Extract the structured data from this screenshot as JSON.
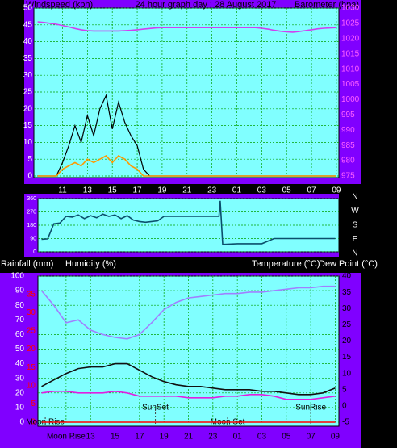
{
  "chart_data": [
    {
      "type": "line",
      "title": "24 hour graph day : 28 August 2017",
      "y_label": "Windspeed (kph)",
      "y2_label": "Barometer (hpa)",
      "x": [
        9,
        9.5,
        10,
        10.5,
        11,
        11.5,
        12,
        12.5,
        13,
        13.5,
        14,
        14.5,
        15,
        15.5,
        16,
        16.5,
        17,
        17.5,
        18,
        18.5,
        19,
        19.5,
        20,
        20.5,
        21,
        21.5,
        22,
        22.5,
        23,
        23.5,
        24,
        24.5,
        25,
        25.5,
        26,
        26.5,
        27,
        27.5,
        28,
        28.5,
        29,
        29.5,
        30,
        30.5,
        31,
        31.5,
        32,
        32.5,
        33
      ],
      "xlim": [
        8.7,
        33.2
      ],
      "xticks": [
        11,
        13,
        15,
        17,
        19,
        21,
        23,
        {
          "value": 25,
          "label": "01"
        },
        {
          "value": 27,
          "label": "03"
        },
        {
          "value": 29,
          "label": "05"
        },
        {
          "value": 31,
          "label": "07"
        },
        {
          "value": 33,
          "label": "09"
        }
      ],
      "ylim": [
        0,
        50
      ],
      "yticks": [
        0,
        5,
        10,
        15,
        20,
        25,
        30,
        35,
        40,
        45,
        50
      ],
      "y2lim": [
        975,
        1030
      ],
      "y2ticks": [
        975,
        980,
        985,
        990,
        995,
        1000,
        1005,
        1010,
        1015,
        1020,
        1025,
        1030
      ],
      "grid": true,
      "series": [
        {
          "color": "#000000",
          "values": [
            0,
            0,
            0,
            0,
            4,
            9,
            15,
            10,
            18,
            12,
            20,
            24,
            14,
            22,
            16,
            12,
            9,
            2,
            0,
            0,
            0,
            0,
            0,
            0,
            0,
            0,
            0,
            0,
            0,
            0,
            0,
            0,
            0,
            0,
            0,
            0,
            0,
            0,
            0,
            0,
            0,
            0,
            0,
            0,
            0,
            0,
            0,
            0,
            0
          ]
        },
        {
          "color": "#ff9900",
          "values": [
            0,
            0,
            0,
            0,
            2,
            3,
            4,
            3,
            5,
            4,
            5,
            6,
            4,
            6,
            5,
            3,
            2,
            0,
            0,
            0,
            0,
            0,
            0,
            0,
            0,
            0,
            0,
            0,
            0,
            0,
            0,
            0,
            0,
            0,
            0,
            0,
            0,
            0,
            0,
            0,
            0,
            0,
            0,
            0,
            0,
            0,
            0,
            0,
            0
          ]
        },
        {
          "color": "#d040f0",
          "axis": "y2",
          "values": [
            1025.5,
            1025.3,
            1025,
            1024.7,
            1024.3,
            1023.8,
            1023.3,
            1022.9,
            1022.6,
            1022.5,
            1022.5,
            1022.5,
            1022.5,
            1022.5,
            1022.6,
            1022.7,
            1022.9,
            1023.1,
            1023.3,
            1023.5,
            1023.6,
            1023.6,
            1023.6,
            1023.6,
            1023.6,
            1023.6,
            1023.6,
            1023.6,
            1023.6,
            1023.6,
            1023.6,
            1023.6,
            1023.6,
            1023.6,
            1023.6,
            1023.6,
            1023.4,
            1023.1,
            1022.7,
            1022.4,
            1022.2,
            1022.1,
            1022.3,
            1022.6,
            1022.9,
            1023.2,
            1023.4,
            1023.5,
            1023.6
          ]
        }
      ]
    },
    {
      "type": "line",
      "compass": [
        "N",
        "W",
        "S",
        "E",
        "N"
      ],
      "x": [
        9,
        9.5,
        10,
        10.5,
        11,
        11.5,
        12,
        12.5,
        13,
        13.5,
        14,
        14.5,
        15,
        15.5,
        16,
        16.5,
        17,
        17.5,
        18,
        18.5,
        19,
        21,
        23.5,
        23.6,
        23.8,
        25,
        27,
        28,
        30,
        33
      ],
      "xlim": [
        8.7,
        33.3
      ],
      "ylim": [
        0,
        360
      ],
      "yticks": [
        0,
        90,
        180,
        270,
        360
      ],
      "grid": true,
      "series": [
        {
          "color": "#0b4f6c",
          "values": [
            85,
            88,
            190,
            195,
            240,
            235,
            250,
            225,
            245,
            230,
            255,
            240,
            250,
            225,
            245,
            215,
            205,
            200,
            205,
            210,
            240,
            240,
            240,
            345,
            50,
            55,
            55,
            90,
            90,
            90
          ]
        }
      ]
    },
    {
      "type": "line",
      "y_label": "Humidity (%)",
      "y3_label": "Rainfall (mm)",
      "y2_label": "Temperature (°C)",
      "y4_label": "Dew Point (°C)",
      "x": [
        9,
        10,
        11,
        12,
        13,
        14,
        15,
        16,
        17,
        18,
        19,
        20,
        21,
        22,
        23,
        24,
        25,
        26,
        27,
        28,
        29,
        30,
        31,
        32,
        33
      ],
      "xlim": [
        8.7,
        33.3
      ],
      "xticks": [
        {
          "value": 11,
          "label": "Moon Rise"
        },
        13,
        15,
        17,
        19,
        21,
        23,
        {
          "value": 25,
          "label": "01"
        },
        {
          "value": 27,
          "label": "03"
        },
        {
          "value": 29,
          "label": "05"
        },
        {
          "value": 31,
          "label": "07"
        },
        {
          "value": 33,
          "label": "09"
        }
      ],
      "ylim": [
        0,
        100
      ],
      "yticks": [
        0,
        10,
        20,
        30,
        40,
        50,
        60,
        70,
        80,
        90,
        100
      ],
      "y2lim": [
        -5,
        40
      ],
      "y2ticks": [
        -5,
        0,
        5,
        10,
        15,
        20,
        25,
        30,
        35,
        40
      ],
      "y3lim": [
        0,
        40
      ],
      "y3ticks": [
        0,
        5,
        10,
        15,
        20,
        25,
        30,
        35
      ],
      "grid": true,
      "events": [
        {
          "label": "Moon Rise",
          "x": 9.3
        },
        {
          "label": "SunSet",
          "x": 18.3
        },
        {
          "label": "Moon Set",
          "x": 24.2
        },
        {
          "label": "SunRise",
          "x": 31
        }
      ],
      "series": [
        {
          "color": "#a080ff",
          "values": [
            90,
            80,
            68,
            70,
            63,
            60,
            58,
            57,
            60,
            68,
            77,
            82,
            85,
            86,
            87,
            88,
            88,
            89,
            89,
            90,
            91,
            92,
            92,
            93,
            93
          ]
        },
        {
          "color": "#111111",
          "axis": "y2",
          "values": [
            6,
            8,
            10,
            11.5,
            12,
            12,
            13,
            13,
            11,
            9,
            7.5,
            6.5,
            6,
            6,
            5.5,
            5,
            5,
            5,
            4.5,
            4.5,
            4,
            3.5,
            3.5,
            4,
            5.5
          ]
        },
        {
          "color": "#e020e0",
          "axis": "y2",
          "values": [
            4,
            4.5,
            4.5,
            4,
            4,
            4,
            4.5,
            4,
            3,
            3,
            3,
            3,
            2.5,
            2.5,
            2.5,
            3,
            3,
            3.5,
            3.5,
            3,
            2,
            2,
            2,
            2.5,
            3
          ]
        },
        {
          "color": "#ff0000",
          "axis": "y3",
          "values": [
            0,
            0,
            0,
            0,
            0,
            0,
            0,
            0,
            0,
            0,
            0,
            0,
            0,
            0,
            0,
            0,
            0,
            0,
            0,
            0,
            0,
            0,
            0,
            0,
            0
          ]
        }
      ]
    }
  ]
}
